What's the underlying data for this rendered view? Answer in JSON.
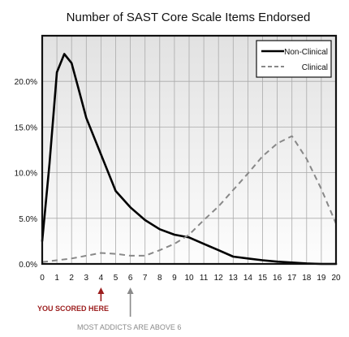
{
  "chart_data": {
    "type": "line",
    "title": "Number of SAST Core Scale Items Endorsed",
    "xlabel": "",
    "ylabel": "",
    "xlim": [
      0,
      20
    ],
    "ylim": [
      0,
      25
    ],
    "x_ticks": [
      "0",
      "1",
      "2",
      "3",
      "4",
      "5",
      "6",
      "7",
      "8",
      "9",
      "10",
      "11",
      "12",
      "13",
      "14",
      "15",
      "16",
      "17",
      "18",
      "19",
      "20"
    ],
    "y_ticks": [
      "0.0%",
      "5.0%",
      "10.0%",
      "15.0%",
      "20.0%"
    ],
    "grid": true,
    "legend_placement": "top-right",
    "series": [
      {
        "name": "Non-Clinical",
        "style": "solid",
        "color": "#000000",
        "x": [
          0,
          0.5,
          1,
          1.5,
          2,
          2.5,
          3,
          4,
          5,
          6,
          7,
          8,
          9,
          10,
          11,
          12,
          13,
          14,
          15,
          16,
          17,
          18,
          19,
          20
        ],
        "y": [
          2.5,
          11,
          21,
          23,
          22,
          19,
          16,
          12,
          8,
          6.2,
          4.8,
          3.8,
          3.2,
          2.9,
          2.2,
          1.5,
          0.8,
          0.6,
          0.4,
          0.25,
          0.15,
          0.05,
          0,
          0
        ]
      },
      {
        "name": "Clinical",
        "style": "dashed",
        "color": "#888888",
        "x": [
          0,
          1,
          2,
          3,
          4,
          5,
          6,
          7,
          8,
          9,
          10,
          11,
          12,
          13,
          14,
          15,
          16,
          17,
          18,
          19,
          20
        ],
        "y": [
          0.2,
          0.4,
          0.6,
          0.9,
          1.2,
          1.1,
          0.9,
          0.9,
          1.5,
          2.2,
          3.2,
          4.8,
          6.3,
          8.1,
          9.9,
          11.8,
          13.2,
          14.0,
          11.5,
          8.2,
          4.4
        ]
      }
    ],
    "annotations": [
      {
        "text": "YOU SCORED HERE",
        "x": 4,
        "color": "#9b1c1c"
      },
      {
        "text": "MOST ADDICTS ARE ABOVE 6",
        "x": 6,
        "color": "#8a8a8a"
      }
    ]
  }
}
